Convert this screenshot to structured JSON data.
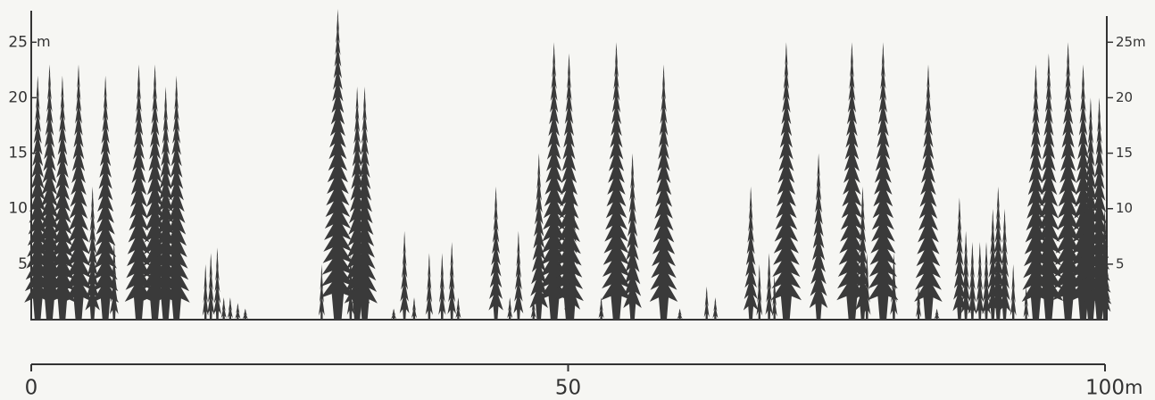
{
  "chart_data": {
    "type": "profile",
    "y_unit": "m",
    "x_unit": "m",
    "xlim": [
      0,
      100
    ],
    "xticks": [
      0,
      50,
      100
    ],
    "ylim": [
      0,
      28
    ],
    "yticks": [
      5,
      10,
      15,
      20,
      25
    ],
    "color": "#3a3a3a",
    "x": [
      0.6,
      1.7,
      2.9,
      4.4,
      5.7,
      6.9,
      7.7,
      10.0,
      11.5,
      12.5,
      13.5,
      16.2,
      16.7,
      17.3,
      17.9,
      18.5,
      19.2,
      19.9,
      27.0,
      28.5,
      29.7,
      30.3,
      31.0,
      33.7,
      34.7,
      35.6,
      37.0,
      38.2,
      39.1,
      39.7,
      43.2,
      44.5,
      45.3,
      46.7,
      47.2,
      48.6,
      50.0,
      50.3,
      53.0,
      54.4,
      55.9,
      58.8,
      60.3,
      62.8,
      63.6,
      66.9,
      67.7,
      68.6,
      69.1,
      70.2,
      73.2,
      76.3,
      77.3,
      77.7,
      79.2,
      80.2,
      82.5,
      83.4,
      84.2,
      86.3,
      86.9,
      87.5,
      88.2,
      88.8,
      89.4,
      89.9,
      90.5,
      91.3,
      92.5,
      93.4,
      94.6,
      96.4,
      97.8,
      98.5,
      99.3,
      99.8
    ],
    "values": [
      22,
      23,
      22,
      23,
      12,
      22,
      7,
      23,
      23,
      21,
      22,
      5,
      6,
      6.5,
      2,
      2,
      1.5,
      1,
      5,
      28,
      6,
      21,
      21,
      1,
      8,
      2,
      6,
      6,
      7,
      2,
      12,
      2,
      8,
      2,
      15,
      25,
      24,
      13,
      2,
      25,
      15,
      23,
      1,
      3,
      2,
      12,
      5,
      6,
      4,
      25,
      15,
      25,
      12,
      6,
      25,
      6,
      3,
      23,
      1,
      11,
      8,
      7,
      7,
      7,
      10,
      12,
      10,
      5,
      3,
      23,
      24,
      25,
      23,
      20,
      20,
      10
    ]
  }
}
